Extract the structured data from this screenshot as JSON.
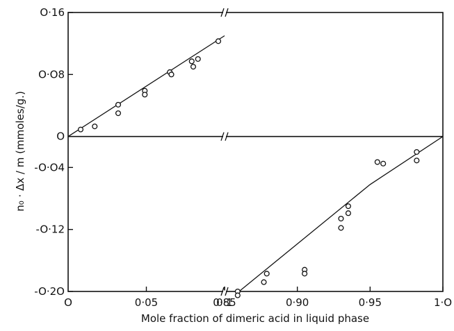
{
  "chart_data": {
    "type": "scatter",
    "title": "",
    "xlabel": "Mole fraction of dimeric acid in liquid phase",
    "ylabel": "n₀ · Δx / m (mmoles/g.)",
    "ylim": [
      -0.2,
      0.16
    ],
    "x_axis_break": {
      "from": 0.1,
      "to": 0.85
    },
    "x_ticks": [
      {
        "value": 0,
        "label": "0"
      },
      {
        "value": 0.05,
        "label": "0·05"
      },
      {
        "value": 0.1,
        "label": "0·1"
      },
      {
        "value": 0.85,
        "label": "0·85"
      },
      {
        "value": 0.9,
        "label": "0·90"
      },
      {
        "value": 0.95,
        "label": "0·95"
      },
      {
        "value": 1.0,
        "label": "1·O"
      }
    ],
    "y_ticks": [
      {
        "value": 0.16,
        "label": "O·16"
      },
      {
        "value": 0.08,
        "label": "O·O8"
      },
      {
        "value": 0,
        "label": "O"
      },
      {
        "value": -0.04,
        "label": "-O·O4"
      },
      {
        "value": -0.12,
        "label": "-O·12"
      },
      {
        "value": -0.2,
        "label": "-O·2O"
      }
    ],
    "x_origin_label": "O",
    "series": [
      {
        "points": [
          {
            "x": 0.008,
            "y": 0.009
          },
          {
            "x": 0.017,
            "y": 0.013
          },
          {
            "x": 0.032,
            "y": 0.041
          },
          {
            "x": 0.032,
            "y": 0.03
          },
          {
            "x": 0.049,
            "y": 0.059
          },
          {
            "x": 0.049,
            "y": 0.054
          },
          {
            "x": 0.065,
            "y": 0.083
          },
          {
            "x": 0.066,
            "y": 0.08
          },
          {
            "x": 0.079,
            "y": 0.097
          },
          {
            "x": 0.08,
            "y": 0.09
          },
          {
            "x": 0.083,
            "y": 0.1
          },
          {
            "x": 0.096,
            "y": 0.123
          }
        ],
        "fit": [
          {
            "x": 0.0,
            "y": 0.0
          },
          {
            "x": 0.1,
            "y": 0.13
          }
        ]
      },
      {
        "points": [
          {
            "x": 0.859,
            "y": -0.2
          },
          {
            "x": 0.859,
            "y": -0.205
          },
          {
            "x": 0.877,
            "y": -0.188
          },
          {
            "x": 0.879,
            "y": -0.177
          },
          {
            "x": 0.905,
            "y": -0.172
          },
          {
            "x": 0.905,
            "y": -0.177
          },
          {
            "x": 0.93,
            "y": -0.106
          },
          {
            "x": 0.93,
            "y": -0.118
          },
          {
            "x": 0.935,
            "y": -0.09
          },
          {
            "x": 0.935,
            "y": -0.099
          },
          {
            "x": 0.955,
            "y": -0.033
          },
          {
            "x": 0.959,
            "y": -0.035
          },
          {
            "x": 0.982,
            "y": -0.02
          },
          {
            "x": 0.982,
            "y": -0.031
          }
        ],
        "fit": [
          {
            "x": 0.86,
            "y": -0.2
          },
          {
            "x": 0.95,
            "y": -0.062
          },
          {
            "x": 1.0,
            "y": 0.0
          }
        ]
      }
    ]
  }
}
